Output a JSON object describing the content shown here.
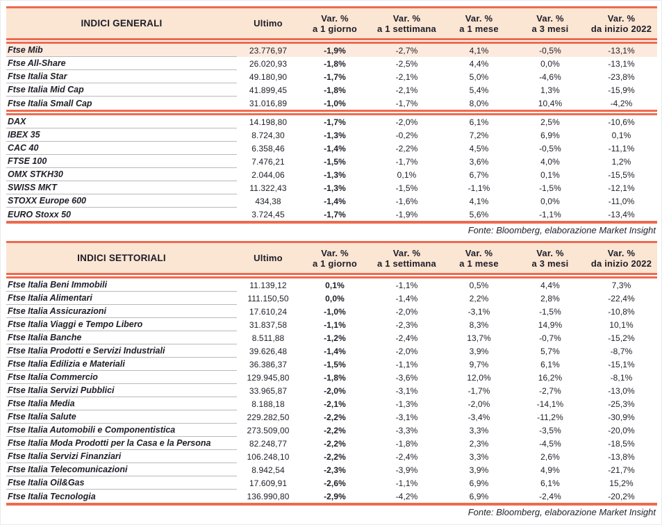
{
  "colors": {
    "accent_salmon": "#ed6a4f",
    "header_bg": "#fbe5d3",
    "highlight_row_bg": "#fdeadf",
    "row_separator": "#b9b9b9",
    "text": "#1d1d27"
  },
  "column_headers": {
    "ultimo": "Ultimo",
    "var_cols": [
      {
        "line1": "Var. %",
        "line2": "a 1 giorno"
      },
      {
        "line1": "Var. %",
        "line2": "a 1 settimana"
      },
      {
        "line1": "Var. %",
        "line2": "a 1 mese"
      },
      {
        "line1": "Var. %",
        "line2": "a 3 mesi"
      },
      {
        "line1": "Var. %",
        "line2": "da inizio 2022"
      }
    ]
  },
  "tables": [
    {
      "title": "INDICI GENERALI",
      "source": "Fonte: Bloomberg, elaborazione Market Insight",
      "groups": [
        {
          "rows": [
            {
              "name": "Ftse Mib",
              "highlight": true,
              "ultimo": "23.776,97",
              "values": [
                "-1,9%",
                "-2,7%",
                "4,1%",
                "-0,5%",
                "-13,1%"
              ]
            },
            {
              "name": "Ftse All-Share",
              "ultimo": "26.020,93",
              "values": [
                "-1,8%",
                "-2,5%",
                "4,4%",
                "0,0%",
                "-13,1%"
              ]
            },
            {
              "name": "Ftse Italia Star",
              "ultimo": "49.180,90",
              "values": [
                "-1,7%",
                "-2,1%",
                "5,0%",
                "-4,6%",
                "-23,8%"
              ]
            },
            {
              "name": "Ftse Italia Mid Cap",
              "ultimo": "41.899,45",
              "values": [
                "-1,8%",
                "-2,1%",
                "5,4%",
                "1,3%",
                "-15,9%"
              ]
            },
            {
              "name": "Ftse Italia Small Cap",
              "ultimo": "31.016,89",
              "values": [
                "-1,0%",
                "-1,7%",
                "8,0%",
                "10,4%",
                "-4,2%"
              ]
            }
          ]
        },
        {
          "rows": [
            {
              "name": "DAX",
              "ultimo": "14.198,80",
              "values": [
                "-1,7%",
                "-2,0%",
                "6,1%",
                "2,5%",
                "-10,6%"
              ]
            },
            {
              "name": "IBEX 35",
              "ultimo": "8.724,30",
              "values": [
                "-1,3%",
                "-0,2%",
                "7,2%",
                "6,9%",
                "0,1%"
              ]
            },
            {
              "name": "CAC 40",
              "ultimo": "6.358,46",
              "values": [
                "-1,4%",
                "-2,2%",
                "4,5%",
                "-0,5%",
                "-11,1%"
              ]
            },
            {
              "name": "FTSE 100",
              "ultimo": "7.476,21",
              "values": [
                "-1,5%",
                "-1,7%",
                "3,6%",
                "4,0%",
                "1,2%"
              ]
            },
            {
              "name": "OMX STKH30",
              "ultimo": "2.044,06",
              "values": [
                "-1,3%",
                "0,1%",
                "6,7%",
                "0,1%",
                "-15,5%"
              ]
            },
            {
              "name": "SWISS MKT",
              "ultimo": "11.322,43",
              "values": [
                "-1,3%",
                "-1,5%",
                "-1,1%",
                "-1,5%",
                "-12,1%"
              ]
            },
            {
              "name": "STOXX Europe 600",
              "ultimo": "434,38",
              "values": [
                "-1,4%",
                "-1,6%",
                "4,1%",
                "0,0%",
                "-11,0%"
              ]
            },
            {
              "name": "EURO Stoxx 50",
              "ultimo": "3.724,45",
              "values": [
                "-1,7%",
                "-1,9%",
                "5,6%",
                "-1,1%",
                "-13,4%"
              ]
            }
          ]
        }
      ]
    },
    {
      "title": "INDICI SETTORIALI",
      "source": "Fonte: Bloomberg, elaborazione Market Insight",
      "groups": [
        {
          "rows": [
            {
              "name": "Ftse Italia Beni Immobili",
              "ultimo": "11.139,12",
              "values": [
                "0,1%",
                "-1,1%",
                "0,5%",
                "4,4%",
                "7,3%"
              ]
            },
            {
              "name": "Ftse Italia Alimentari",
              "ultimo": "111.150,50",
              "values": [
                "0,0%",
                "-1,4%",
                "2,2%",
                "2,8%",
                "-22,4%"
              ]
            },
            {
              "name": "Ftse Italia Assicurazioni",
              "ultimo": "17.610,24",
              "values": [
                "-1,0%",
                "-2,0%",
                "-3,1%",
                "-1,5%",
                "-10,8%"
              ]
            },
            {
              "name": "Ftse Italia Viaggi e Tempo Libero",
              "ultimo": "31.837,58",
              "values": [
                "-1,1%",
                "-2,3%",
                "8,3%",
                "14,9%",
                "10,1%"
              ]
            },
            {
              "name": "Ftse Italia Banche",
              "ultimo": "8.511,88",
              "values": [
                "-1,2%",
                "-2,4%",
                "13,7%",
                "-0,7%",
                "-15,2%"
              ]
            },
            {
              "name": "Ftse Italia Prodotti e Servizi Industriali",
              "ultimo": "39.626,48",
              "values": [
                "-1,4%",
                "-2,0%",
                "3,9%",
                "5,7%",
                "-8,7%"
              ]
            },
            {
              "name": "Ftse Italia Edilizia e Materiali",
              "ultimo": "36.386,37",
              "values": [
                "-1,5%",
                "-1,1%",
                "9,7%",
                "6,1%",
                "-15,1%"
              ]
            },
            {
              "name": "Ftse Italia Commercio",
              "ultimo": "129.945,80",
              "values": [
                "-1,8%",
                "-3,6%",
                "12,0%",
                "16,2%",
                "-8,1%"
              ]
            },
            {
              "name": "Ftse Italia Servizi Pubblici",
              "ultimo": "33.965,87",
              "values": [
                "-2,0%",
                "-3,1%",
                "-1,7%",
                "-2,7%",
                "-13,0%"
              ]
            },
            {
              "name": "Ftse Italia Media",
              "ultimo": "8.188,18",
              "values": [
                "-2,1%",
                "-1,3%",
                "-2,0%",
                "-14,1%",
                "-25,3%"
              ]
            },
            {
              "name": "Ftse Italia Salute",
              "ultimo": "229.282,50",
              "values": [
                "-2,2%",
                "-3,1%",
                "-3,4%",
                "-11,2%",
                "-30,9%"
              ]
            },
            {
              "name": "Ftse Italia Automobili e Componentistica",
              "ultimo": "273.509,00",
              "values": [
                "-2,2%",
                "-3,3%",
                "3,3%",
                "-3,5%",
                "-20,0%"
              ]
            },
            {
              "name": "Ftse Italia Moda Prodotti per la Casa e la Persona",
              "ultimo": "82.248,77",
              "values": [
                "-2,2%",
                "-1,8%",
                "2,3%",
                "-4,5%",
                "-18,5%"
              ]
            },
            {
              "name": "Ftse Italia Servizi Finanziari",
              "ultimo": "106.248,10",
              "values": [
                "-2,2%",
                "-2,4%",
                "3,3%",
                "2,6%",
                "-13,8%"
              ]
            },
            {
              "name": "Ftse Italia Telecomunicazioni",
              "ultimo": "8.942,54",
              "values": [
                "-2,3%",
                "-3,9%",
                "3,9%",
                "4,9%",
                "-21,7%"
              ]
            },
            {
              "name": "Ftse Italia Oil&Gas",
              "ultimo": "17.609,91",
              "values": [
                "-2,6%",
                "-1,1%",
                "6,9%",
                "6,1%",
                "15,2%"
              ]
            },
            {
              "name": "Ftse Italia Tecnologia",
              "ultimo": "136.990,80",
              "values": [
                "-2,9%",
                "-4,2%",
                "6,9%",
                "-2,4%",
                "-20,2%"
              ]
            }
          ]
        }
      ]
    }
  ]
}
